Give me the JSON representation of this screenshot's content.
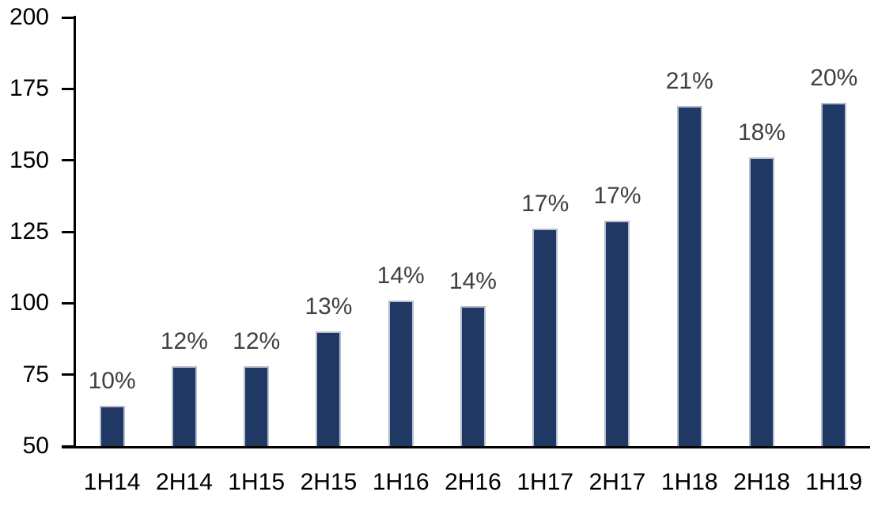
{
  "chart_data": {
    "type": "bar",
    "categories": [
      "1H14",
      "2H14",
      "1H15",
      "2H15",
      "1H16",
      "2H16",
      "1H17",
      "2H17",
      "1H18",
      "2H18",
      "1H19"
    ],
    "values": [
      64,
      78,
      78,
      90,
      101,
      99,
      126,
      129,
      169,
      151,
      170
    ],
    "bar_labels": [
      "10%",
      "12%",
      "12%",
      "13%",
      "14%",
      "14%",
      "17%",
      "17%",
      "21%",
      "18%",
      "20%"
    ],
    "title": "",
    "xlabel": "",
    "ylabel": "",
    "ylim": [
      50,
      200
    ],
    "y_ticks": [
      200,
      175,
      150,
      125,
      100,
      75,
      50
    ],
    "grid": false,
    "legend": "none",
    "colors": {
      "bar_fill": "#1f3864",
      "bar_border": "#b6becd",
      "data_label": "#404040",
      "axis": "#000000",
      "tick_label": "#000000",
      "background": "#ffffff"
    }
  }
}
